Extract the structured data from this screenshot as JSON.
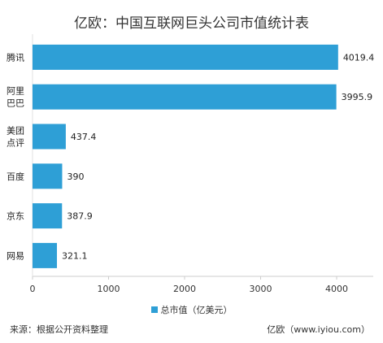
{
  "chart_data": {
    "type": "bar",
    "orientation": "horizontal",
    "title": "亿欧：中国互联网巨头公司市值统计表",
    "categories": [
      "腾讯",
      "阿里巴巴",
      "美团点评",
      "百度",
      "京东",
      "网易"
    ],
    "category_lines": [
      [
        "腾讯"
      ],
      [
        "阿里",
        "巴巴"
      ],
      [
        "美团",
        "点评"
      ],
      [
        "百度"
      ],
      [
        "京东"
      ],
      [
        "网易"
      ]
    ],
    "series": [
      {
        "name": "总市值（亿美元）",
        "values": [
          4019.4,
          3995.9,
          437.4,
          390,
          387.9,
          321.1
        ],
        "color": "#2e9fd6"
      }
    ],
    "data_labels": [
      "4019.4",
      "3995.9",
      "437.4",
      "390",
      "387.9",
      "321.1"
    ],
    "xlim": [
      0,
      4500
    ],
    "xticks": [
      0,
      1000,
      2000,
      3000,
      4000
    ],
    "grid": false,
    "legend": "bottom-center"
  },
  "footer": {
    "source": "来源：根据公开资料整理",
    "brand": "亿欧（www.iyiou.com）"
  }
}
